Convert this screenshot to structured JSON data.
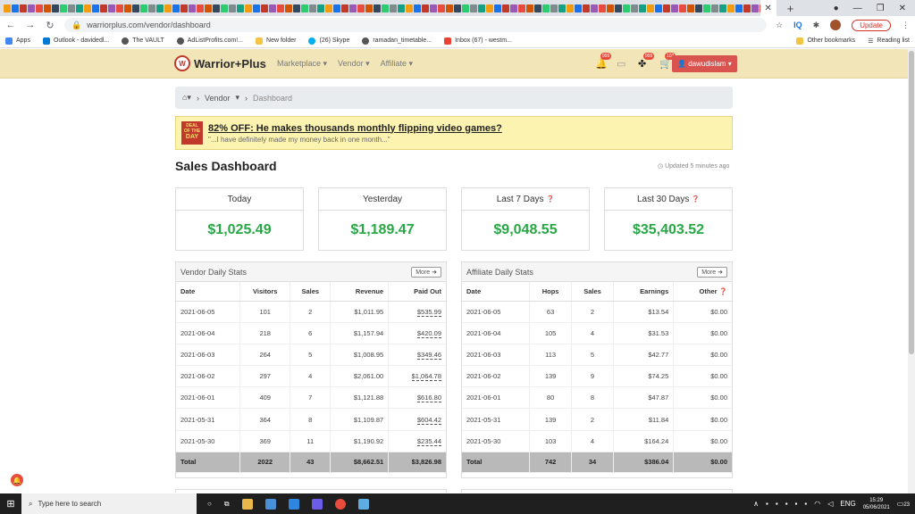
{
  "browser": {
    "url": "warriorplus.com/vendor/dashboard",
    "new_tab": "+",
    "update_label": "Update",
    "ext_iq": "IQ",
    "bookmarks": [
      "Apps",
      "Outlook - davidedl...",
      "The VAULT",
      "AdListProfits.com!...",
      "New folder",
      "(26) Skype",
      "ramadan_timetable...",
      "Inbox (67) - westm..."
    ],
    "other_bookmarks": "Other bookmarks",
    "reading_list": "Reading list"
  },
  "site": {
    "logo_badge": "W",
    "logo": "Warrior+Plus",
    "nav": [
      "Marketplace ▾",
      "Vendor ▾",
      "Affiliate ▾"
    ],
    "badges": {
      "notifications": "999",
      "team": "999",
      "cart": "103"
    },
    "user": "dawudislam"
  },
  "breadcrumb": {
    "vendor": "Vendor",
    "current": "Dashboard"
  },
  "deal": {
    "badge_top": "DEAL",
    "badge_mid": "OF THE",
    "badge_bottom": "DAY",
    "title": "82% OFF: He makes thousands monthly flipping video games?",
    "subtitle": "\"...I have definitely made my money back in one month...\""
  },
  "dashboard": {
    "title": "Sales Dashboard",
    "updated": "Updated 5 minutes ago",
    "cards": [
      {
        "label": "Today",
        "value": "$1,025.49"
      },
      {
        "label": "Yesterday",
        "value": "$1,189.47"
      },
      {
        "label": "Last 7 Days",
        "value": "$9,048.55"
      },
      {
        "label": "Last 30 Days",
        "value": "$35,403.52"
      }
    ]
  },
  "vendor_stats": {
    "title": "Vendor Daily Stats",
    "more": "More",
    "headers": [
      "Date",
      "Visitors",
      "Sales",
      "Revenue",
      "Paid Out"
    ],
    "rows": [
      [
        "2021-06-05",
        "101",
        "2",
        "$1,011.95",
        "$535.99"
      ],
      [
        "2021-06-04",
        "218",
        "6",
        "$1,157.94",
        "$420.09"
      ],
      [
        "2021-06-03",
        "264",
        "5",
        "$1,008.95",
        "$349.46"
      ],
      [
        "2021-06-02",
        "297",
        "4",
        "$2,061.00",
        "$1,064.78"
      ],
      [
        "2021-06-01",
        "409",
        "7",
        "$1,121.88",
        "$616.80"
      ],
      [
        "2021-05-31",
        "364",
        "8",
        "$1,109.87",
        "$604.42"
      ],
      [
        "2021-05-30",
        "369",
        "11",
        "$1,190.92",
        "$235.44"
      ]
    ],
    "total": [
      "Total",
      "2022",
      "43",
      "$8,662.51",
      "$3,826.98"
    ]
  },
  "affiliate_stats": {
    "title": "Affiliate Daily Stats",
    "more": "More",
    "headers": [
      "Date",
      "Hops",
      "Sales",
      "Earnings",
      "Other"
    ],
    "rows": [
      [
        "2021-06-05",
        "63",
        "2",
        "$13.54",
        "$0.00"
      ],
      [
        "2021-06-04",
        "105",
        "4",
        "$31.53",
        "$0.00"
      ],
      [
        "2021-06-03",
        "113",
        "5",
        "$42.77",
        "$0.00"
      ],
      [
        "2021-06-02",
        "139",
        "9",
        "$74.25",
        "$0.00"
      ],
      [
        "2021-06-01",
        "80",
        "8",
        "$47.87",
        "$0.00"
      ],
      [
        "2021-05-31",
        "139",
        "2",
        "$11.84",
        "$0.00"
      ],
      [
        "2021-05-30",
        "103",
        "4",
        "$164.24",
        "$0.00"
      ]
    ],
    "total": [
      "Total",
      "742",
      "34",
      "$386.04",
      "$0.00"
    ]
  },
  "taskbar": {
    "search_placeholder": "Type here to search",
    "lang": "ENG",
    "time": "15:29",
    "date": "05/06/2021",
    "badge": "23"
  },
  "colors": {
    "header_bg": "#f2e6b8",
    "accent_green": "#28a745",
    "user_button": "#d9534f",
    "deal_bg": "#fdf3b0"
  }
}
